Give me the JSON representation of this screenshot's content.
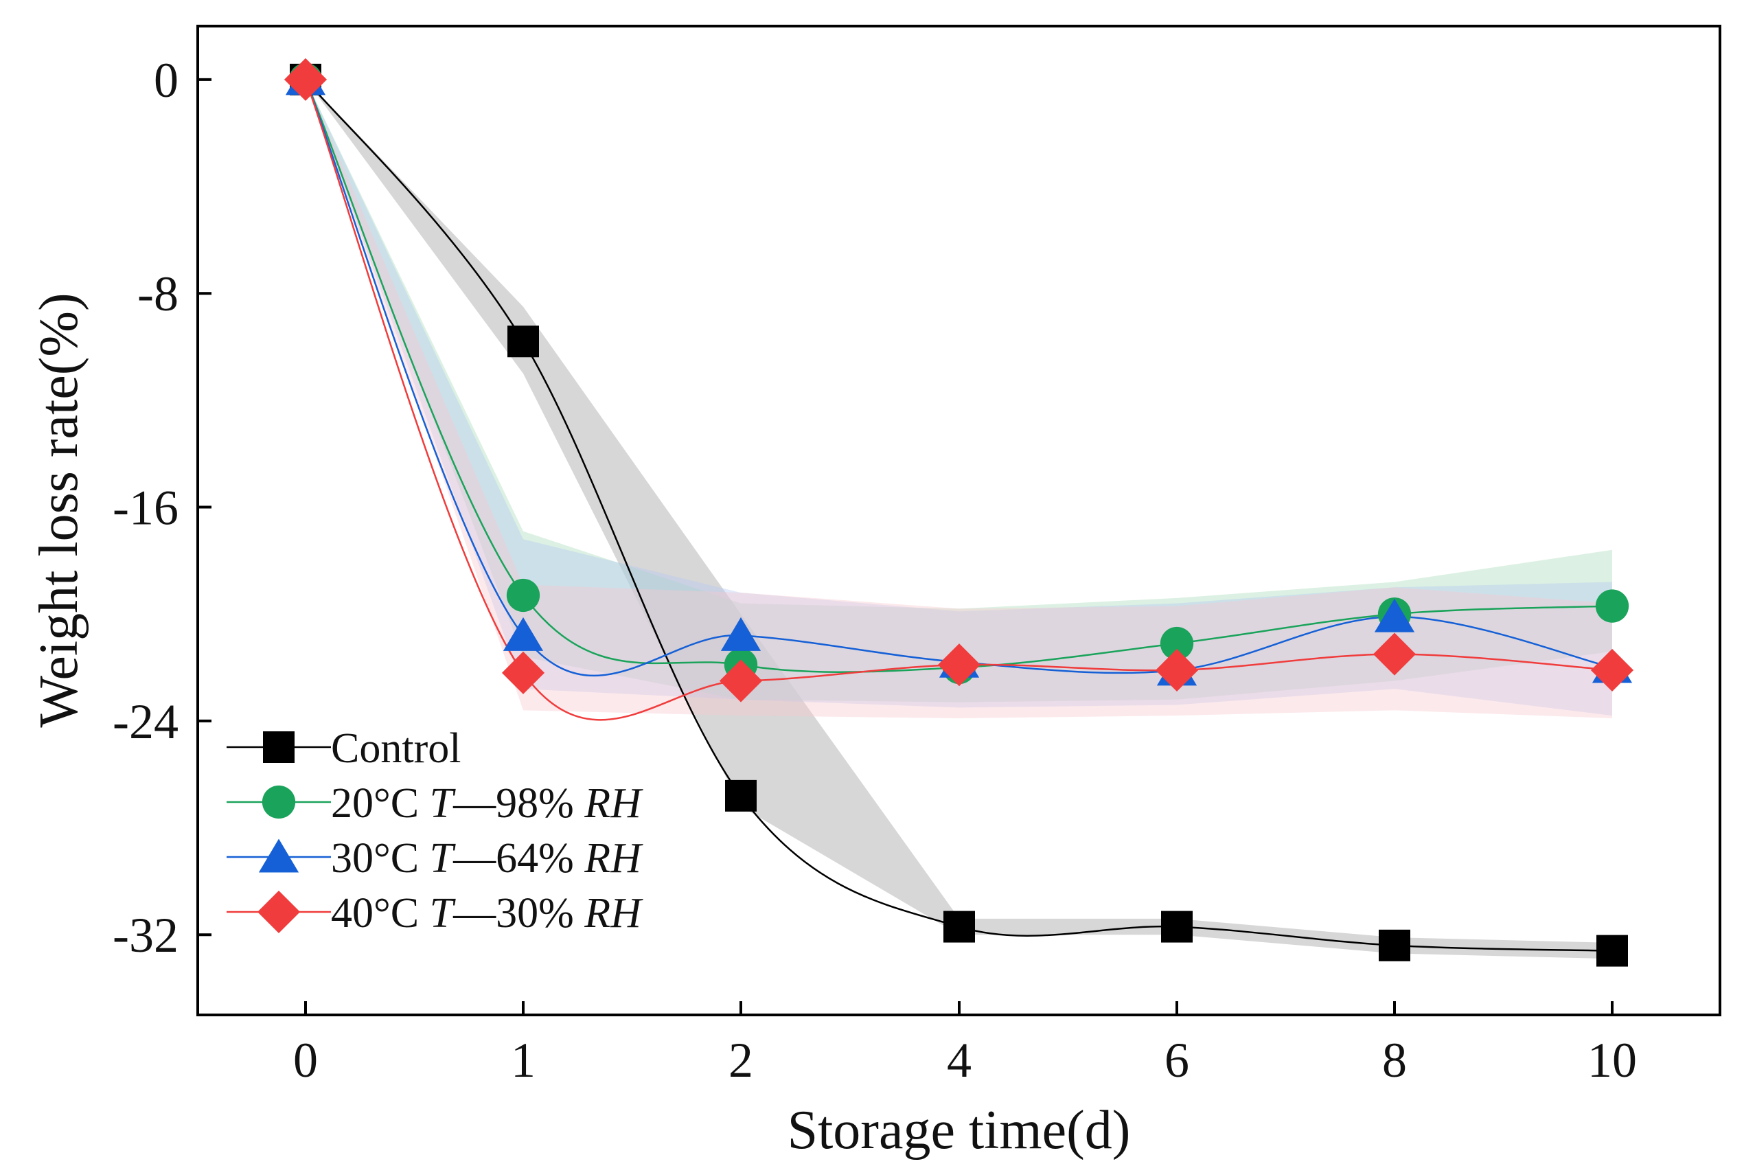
{
  "chart_data": {
    "type": "line",
    "title": "",
    "xlabel": "Storage time(d)",
    "ylabel": "Weight loss rate(%)",
    "categories": [
      "0",
      "1",
      "2",
      "4",
      "6",
      "8",
      "10"
    ],
    "ylim": [
      -35,
      2
    ],
    "yticks": [
      0,
      -8,
      -16,
      -24,
      -32
    ],
    "ytick_labels": [
      "0",
      "-8",
      "-16",
      "-24",
      "-32"
    ],
    "grid": false,
    "legend_position": "bottom-left",
    "series": [
      {
        "name": "Control",
        "legend_parts": [
          "Control",
          "",
          "",
          ""
        ],
        "color": "#000000",
        "marker": "square",
        "values": [
          0,
          -9.8,
          -26.8,
          -31.7,
          -31.7,
          -32.4,
          -32.6
        ],
        "band": {
          "upper": [
            0,
            -8.5,
            -20.0,
            -31.4,
            -31.4,
            -32.1,
            -32.3
          ],
          "lower": [
            0,
            -11.0,
            -27.2,
            -32.0,
            -32.0,
            -32.7,
            -32.9
          ],
          "color": "#9a9a9a"
        }
      },
      {
        "name": "20°C T—98% RH",
        "legend_parts": [
          "20°C ",
          "T",
          "—98% ",
          "RH"
        ],
        "color": "#1aa35a",
        "marker": "circle",
        "values": [
          0,
          -19.3,
          -21.9,
          -22.0,
          -21.1,
          -20.0,
          -19.7
        ],
        "band": {
          "upper": [
            0,
            -16.9,
            -19.6,
            -19.8,
            -19.4,
            -18.8,
            -17.6
          ],
          "lower": [
            0,
            -21.6,
            -23.2,
            -23.3,
            -23.2,
            -22.5,
            -21.4
          ],
          "color": "#a8dcb9"
        }
      },
      {
        "name": "30°C T—64% RH",
        "legend_parts": [
          "30°C ",
          "T",
          "—64% ",
          "RH"
        ],
        "color": "#1560d6",
        "marker": "triangle",
        "values": [
          0,
          -20.8,
          -20.8,
          -21.8,
          -22.1,
          -20.1,
          -22.0
        ],
        "band": {
          "upper": [
            0,
            -17.2,
            -19.2,
            -19.9,
            -19.6,
            -19.0,
            -18.8
          ],
          "lower": [
            0,
            -22.8,
            -23.2,
            -23.5,
            -23.4,
            -22.8,
            -23.8
          ],
          "color": "#b5c9f2"
        }
      },
      {
        "name": "40°C T—30% RH",
        "legend_parts": [
          "40°C ",
          "T",
          "—30% ",
          "RH"
        ],
        "color": "#f03c3c",
        "marker": "diamond",
        "values": [
          0,
          -22.2,
          -22.5,
          -21.9,
          -22.1,
          -21.5,
          -22.1
        ],
        "band": {
          "upper": [
            0,
            -18.9,
            -19.2,
            -19.8,
            -19.7,
            -19.0,
            -19.6
          ],
          "lower": [
            0,
            -23.6,
            -23.8,
            -23.9,
            -23.8,
            -23.6,
            -23.9
          ],
          "color": "#f8c8d0"
        }
      }
    ]
  }
}
